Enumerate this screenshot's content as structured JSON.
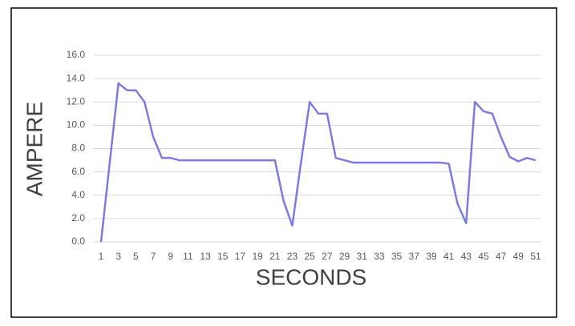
{
  "chart_data": {
    "type": "line",
    "x_label": "SECONDS",
    "y_label": "AMPERE",
    "categories": [
      "1",
      null,
      "3",
      null,
      "5",
      null,
      "7",
      null,
      "9",
      null,
      "11",
      null,
      "13",
      null,
      "15",
      null,
      "17",
      null,
      "19",
      null,
      "21",
      null,
      "23",
      null,
      "25",
      null,
      "27",
      null,
      "29",
      null,
      "31",
      null,
      "33",
      null,
      "35",
      null,
      "37",
      null,
      "39",
      null,
      "41",
      null,
      "43",
      null,
      "45",
      null,
      "47",
      null,
      "49",
      null,
      "51"
    ],
    "values": [
      0,
      6.8,
      13.6,
      13.0,
      13.0,
      12.0,
      9.0,
      7.2,
      7.2,
      7.0,
      7.0,
      7.0,
      7.0,
      7.0,
      7.0,
      7.0,
      7.0,
      7.0,
      7.0,
      7.0,
      7.0,
      3.5,
      1.4,
      6.8,
      12.0,
      11.0,
      11.0,
      7.2,
      7.0,
      6.8,
      6.8,
      6.8,
      6.8,
      6.8,
      6.8,
      6.8,
      6.8,
      6.8,
      6.8,
      6.8,
      6.7,
      3.3,
      1.6,
      12.0,
      11.2,
      11.0,
      9.0,
      7.3,
      6.9,
      7.2,
      7.0
    ],
    "color": "#7b7be3",
    "ylim": [
      0,
      16
    ],
    "yticks": [
      {
        "value": 0,
        "label": "0.0"
      },
      {
        "value": 2,
        "label": "2.0"
      },
      {
        "value": 4,
        "label": "4.0"
      },
      {
        "value": 6,
        "label": "6.0"
      },
      {
        "value": 8,
        "label": "8.0"
      },
      {
        "value": 10,
        "label": "10.0"
      },
      {
        "value": 12,
        "label": "12.0"
      },
      {
        "value": 14,
        "label": "14.0"
      },
      {
        "value": 16,
        "label": "16.0"
      }
    ],
    "grid": true
  }
}
